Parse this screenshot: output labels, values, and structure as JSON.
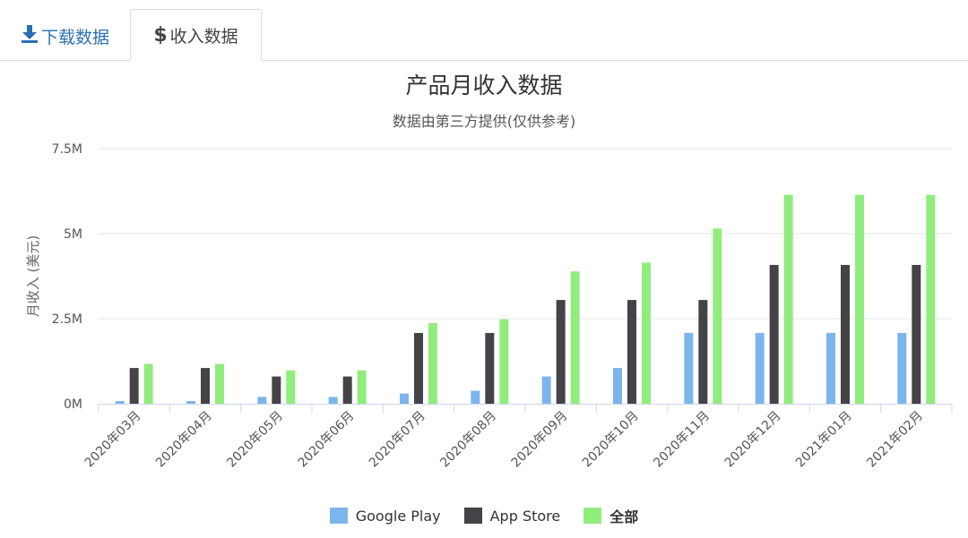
{
  "tabs": {
    "download": {
      "icon": "download-icon",
      "label": "下载数据"
    },
    "revenue": {
      "icon": "dollar-icon",
      "symbol": "$",
      "label": "收入数据"
    }
  },
  "chart_data": {
    "type": "bar",
    "title": "产品月收入数据",
    "subtitle": "数据由第三方提供(仅供参考)",
    "xlabel": "",
    "ylabel": "月收入 (美元)",
    "ylim": [
      0,
      7500000
    ],
    "yticks": [
      0,
      2500000,
      5000000,
      7500000
    ],
    "ytick_labels": [
      "0M",
      "2.5M",
      "5M",
      "7.5M"
    ],
    "grid": true,
    "legend_position": "bottom",
    "categories": [
      "2020年03月",
      "2020年04月",
      "2020年05月",
      "2020年06月",
      "2020年07月",
      "2020年08月",
      "2020年09月",
      "2020年10月",
      "2020年11月",
      "2020年12月",
      "2021年01月",
      "2021年02月"
    ],
    "series": [
      {
        "name": "Google Play",
        "color": "#7cb5ec",
        "values": [
          80000,
          80000,
          200000,
          200000,
          300000,
          380000,
          800000,
          1050000,
          2080000,
          2080000,
          2080000,
          2080000
        ]
      },
      {
        "name": "App Store",
        "color": "#434348",
        "values": [
          1050000,
          1050000,
          800000,
          800000,
          2080000,
          2080000,
          3050000,
          3050000,
          3050000,
          4080000,
          4080000,
          4080000
        ]
      },
      {
        "name": "全部",
        "color": "#90ed7d",
        "values": [
          1170000,
          1170000,
          980000,
          980000,
          2370000,
          2480000,
          3890000,
          4150000,
          5150000,
          6140000,
          6140000,
          6140000
        ]
      }
    ]
  }
}
